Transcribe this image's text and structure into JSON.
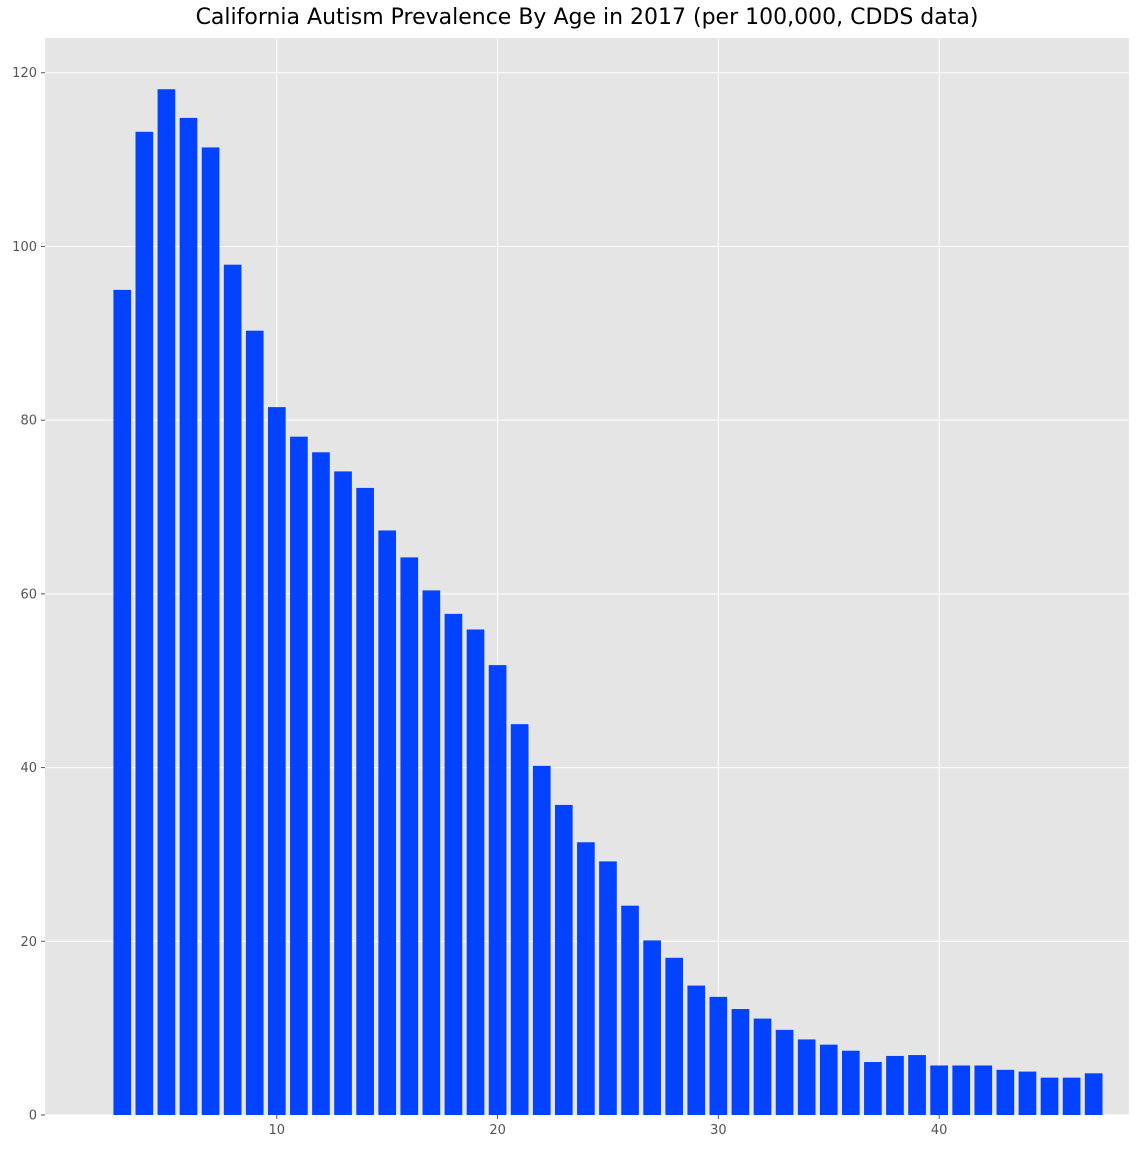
{
  "chart_data": {
    "type": "bar",
    "title": "California Autism Prevalence By Age in 2017 (per 100,000, CDDS data)",
    "xlabel": "",
    "ylabel": "",
    "x": [
      3,
      4,
      5,
      6,
      7,
      8,
      9,
      10,
      11,
      12,
      13,
      14,
      15,
      16,
      17,
      18,
      19,
      20,
      21,
      22,
      23,
      24,
      25,
      26,
      27,
      28,
      29,
      30,
      31,
      32,
      33,
      34,
      35,
      36,
      37,
      38,
      39,
      40,
      41,
      42,
      43,
      44,
      45,
      46,
      47
    ],
    "values": [
      95.0,
      113.2,
      118.1,
      114.8,
      111.4,
      97.9,
      90.3,
      81.5,
      78.1,
      76.3,
      74.1,
      72.2,
      67.3,
      64.2,
      60.4,
      57.7,
      55.9,
      51.8,
      45.0,
      40.2,
      35.7,
      31.4,
      29.2,
      24.1,
      20.1,
      18.1,
      14.9,
      13.6,
      12.2,
      11.1,
      9.8,
      8.7,
      8.1,
      7.4,
      6.1,
      6.8,
      6.9,
      5.7,
      5.7,
      5.7,
      5.2,
      5.0,
      4.3,
      4.3,
      4.8
    ],
    "xlim": [
      -0.5,
      48.6
    ],
    "ylim": [
      0,
      124
    ],
    "xticks": [
      10,
      20,
      30,
      40
    ],
    "yticks": [
      0,
      20,
      40,
      60,
      80,
      100,
      120
    ],
    "grid": true,
    "bar_color": "#0343ff",
    "background_color": "#e5e5e5",
    "grid_color": "#ffffff"
  }
}
